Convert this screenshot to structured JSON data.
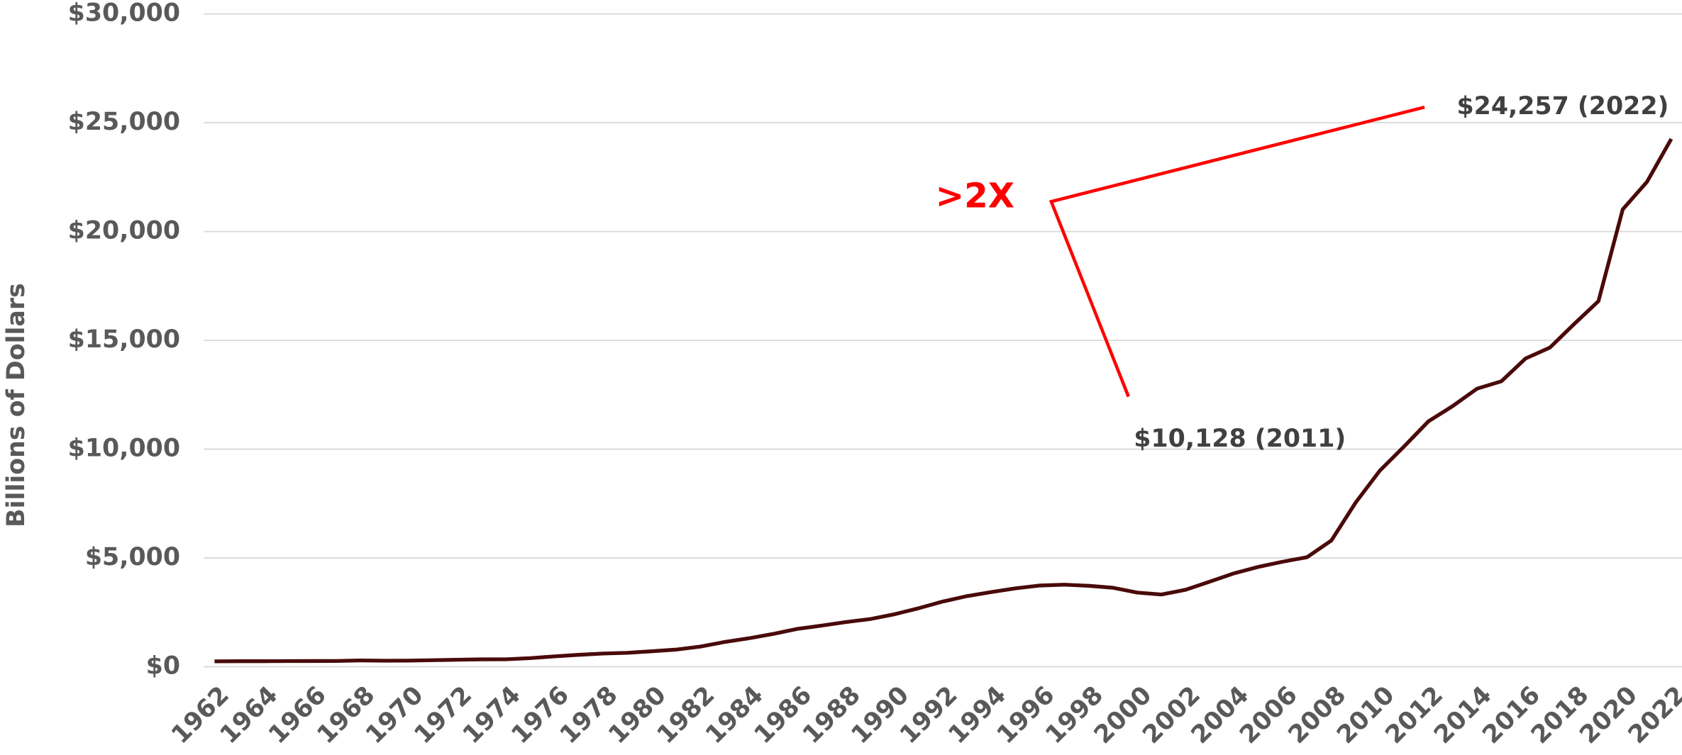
{
  "chart_data": {
    "type": "line",
    "ylabel": "Billions of Dollars",
    "x": [
      1962,
      1963,
      1964,
      1965,
      1966,
      1967,
      1968,
      1969,
      1970,
      1971,
      1972,
      1973,
      1974,
      1975,
      1976,
      1977,
      1978,
      1979,
      1980,
      1981,
      1982,
      1983,
      1984,
      1985,
      1986,
      1987,
      1988,
      1989,
      1990,
      1991,
      1992,
      1993,
      1994,
      1995,
      1996,
      1997,
      1998,
      1999,
      2000,
      2001,
      2002,
      2003,
      2004,
      2005,
      2006,
      2007,
      2008,
      2009,
      2010,
      2011,
      2012,
      2013,
      2014,
      2015,
      2016,
      2017,
      2018,
      2019,
      2020,
      2021,
      2022
    ],
    "series": [
      {
        "color": "#4a0a0a",
        "values": [
          250,
          256,
          256,
          261,
          264,
          267,
          290,
          278,
          283,
          303,
          322,
          341,
          344,
          395,
          477,
          549,
          607,
          640,
          712,
          789,
          925,
          1137,
          1307,
          1507,
          1741,
          1890,
          2052,
          2191,
          2412,
          2689,
          2999,
          3248,
          3433,
          3604,
          3734,
          3772,
          3721,
          3632,
          3410,
          3320,
          3540,
          3913,
          4296,
          4592,
          4829,
          5035,
          5803,
          7545,
          9019,
          10128,
          11281,
          11983,
          12780,
          13117,
          14168,
          14666,
          15750,
          16801,
          21017,
          22284,
          24257
        ]
      }
    ],
    "xlim": [
      1962,
      2022
    ],
    "xticks": [
      1962,
      1964,
      1966,
      1968,
      1970,
      1972,
      1974,
      1976,
      1978,
      1980,
      1982,
      1984,
      1986,
      1988,
      1990,
      1992,
      1994,
      1996,
      1998,
      2000,
      2002,
      2004,
      2006,
      2008,
      2010,
      2012,
      2014,
      2016,
      2018,
      2020,
      2022
    ],
    "ylim": [
      0,
      30000
    ],
    "yticks": [
      {
        "value": 0,
        "label": "$0"
      },
      {
        "value": 5000,
        "label": "$5,000"
      },
      {
        "value": 10000,
        "label": "$10,000"
      },
      {
        "value": 15000,
        "label": "$15,000"
      },
      {
        "value": 20000,
        "label": "$20,000"
      },
      {
        "value": 25000,
        "label": "$25,000"
      },
      {
        "value": 30000,
        "label": "$30,000"
      }
    ],
    "grid": true,
    "annotations": [
      ">2X",
      "$24,257 (2022)",
      "$10,128 (2011)"
    ]
  }
}
